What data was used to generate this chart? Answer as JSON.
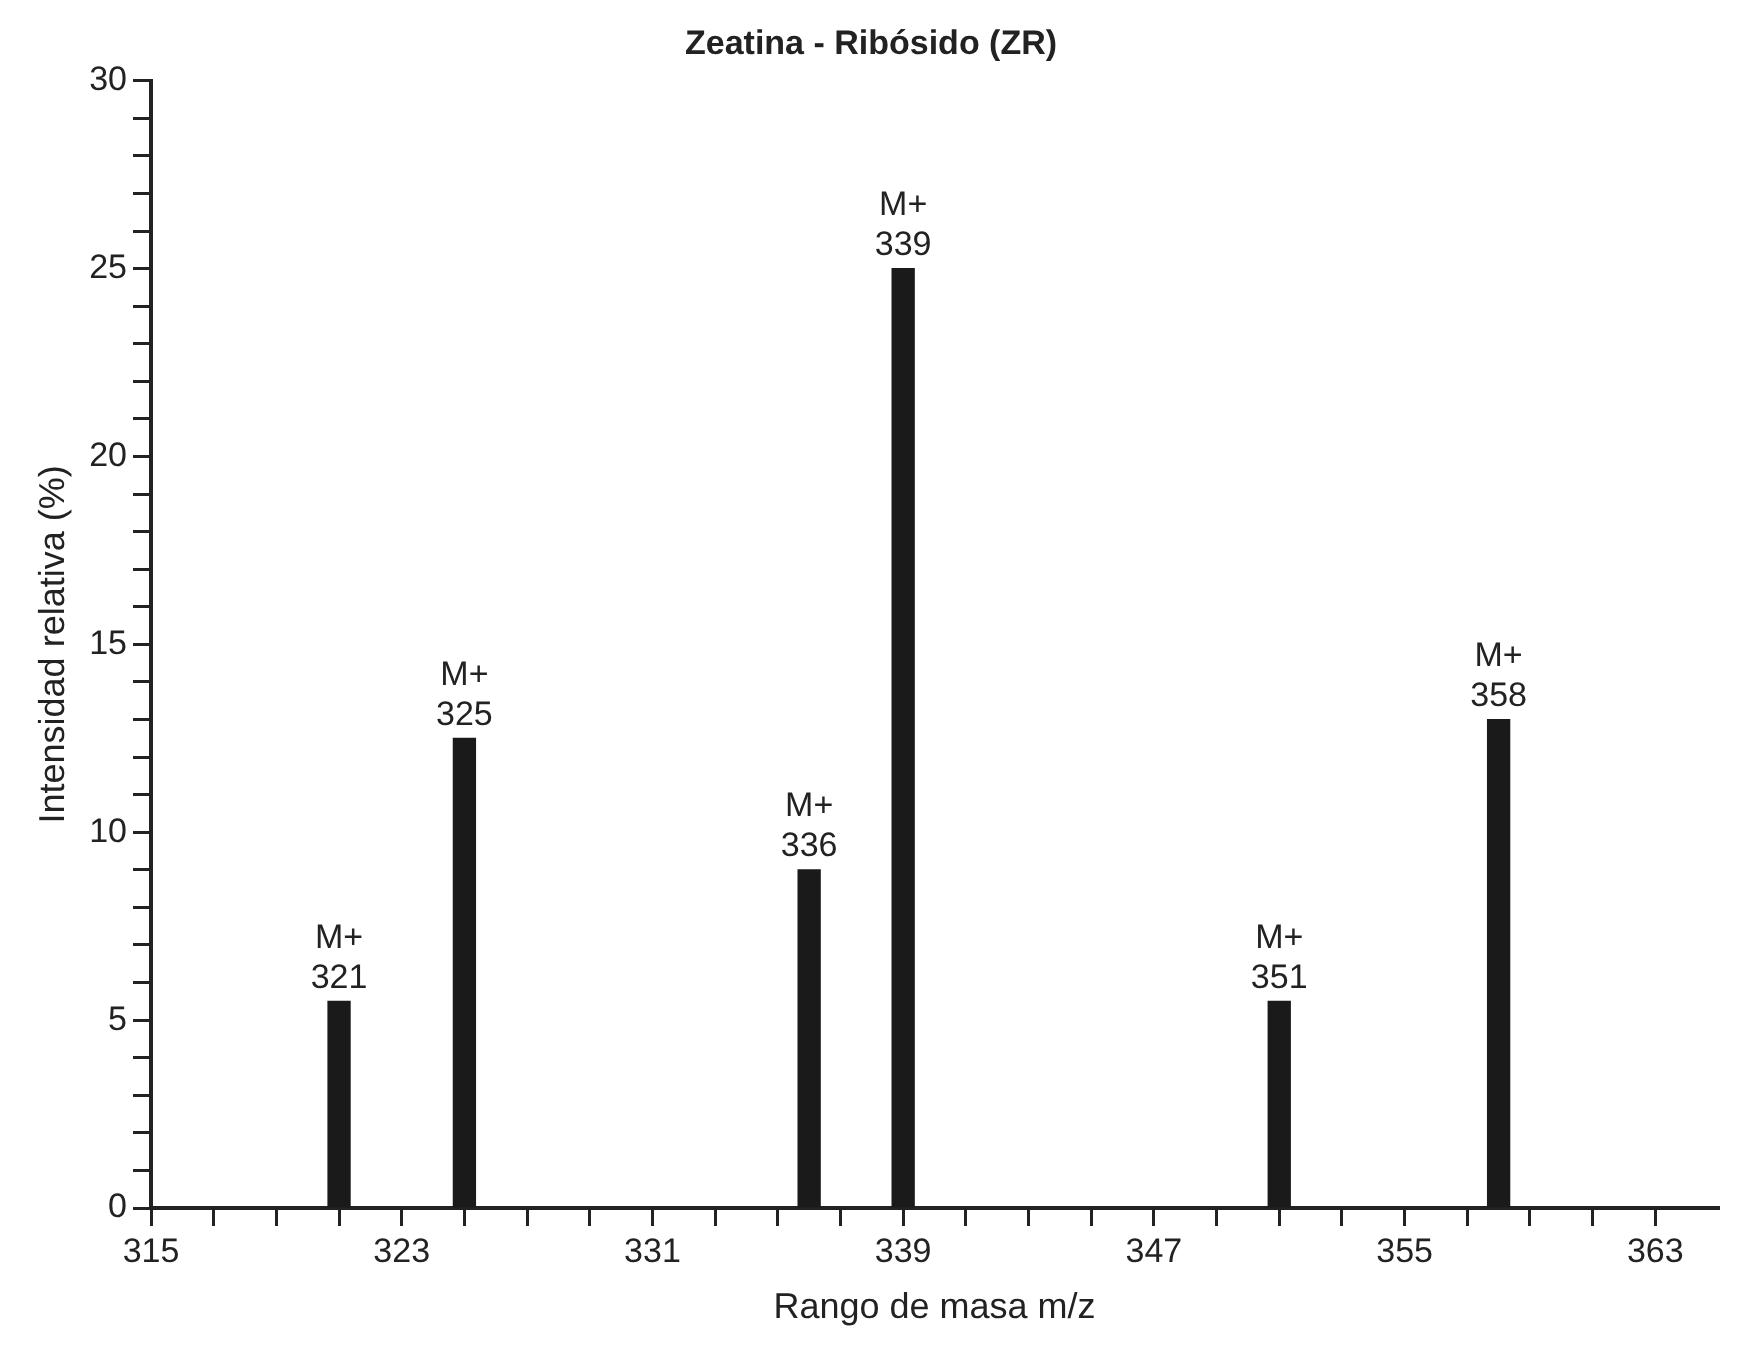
{
  "chart_data": {
    "type": "bar",
    "title": "Zeatina - Ribósido (ZR)",
    "xlabel": "Rango de masa m/z",
    "ylabel": "Intensidad relativa (%)",
    "x": [
      321,
      325,
      336,
      339,
      351,
      358
    ],
    "values": [
      5.5,
      12.5,
      9,
      25,
      5.5,
      13
    ],
    "value_labels": [
      "M+\n321",
      "M+\n325",
      "M+\n336",
      "M+\n339",
      "M+\n351",
      "M+\n358"
    ],
    "color": "#1a1a1a",
    "xlim": [
      315,
      365
    ],
    "xticks": [
      315,
      {
        "value": 317,
        "label": null
      },
      {
        "value": 319,
        "label": null
      },
      {
        "value": 321,
        "label": null
      },
      323,
      {
        "value": 325,
        "label": null
      },
      {
        "value": 327,
        "label": null
      },
      {
        "value": 329,
        "label": null
      },
      331,
      {
        "value": 333,
        "label": null
      },
      {
        "value": 335,
        "label": null
      },
      {
        "value": 337,
        "label": null
      },
      339,
      {
        "value": 341,
        "label": null
      },
      {
        "value": 343,
        "label": null
      },
      {
        "value": 345,
        "label": null
      },
      347,
      {
        "value": 349,
        "label": null
      },
      {
        "value": 351,
        "label": null
      },
      {
        "value": 353,
        "label": null
      },
      355,
      {
        "value": 357,
        "label": null
      },
      {
        "value": 359,
        "label": null
      },
      {
        "value": 361,
        "label": null
      },
      363
    ],
    "ylim": [
      0,
      30
    ],
    "yticks": [
      0,
      {
        "value": 1,
        "label": null
      },
      {
        "value": 2,
        "label": null
      },
      {
        "value": 3,
        "label": null
      },
      {
        "value": 4,
        "label": null
      },
      5,
      {
        "value": 6,
        "label": null
      },
      {
        "value": 7,
        "label": null
      },
      {
        "value": 8,
        "label": null
      },
      {
        "value": 9,
        "label": null
      },
      10,
      {
        "value": 11,
        "label": null
      },
      {
        "value": 12,
        "label": null
      },
      {
        "value": 13,
        "label": null
      },
      {
        "value": 14,
        "label": null
      },
      15,
      {
        "value": 16,
        "label": null
      },
      {
        "value": 17,
        "label": null
      },
      {
        "value": 18,
        "label": null
      },
      {
        "value": 19,
        "label": null
      },
      20,
      {
        "value": 21,
        "label": null
      },
      {
        "value": 22,
        "label": null
      },
      {
        "value": 23,
        "label": null
      },
      {
        "value": 24,
        "label": null
      },
      25,
      {
        "value": 26,
        "label": null
      },
      {
        "value": 27,
        "label": null
      },
      {
        "value": 28,
        "label": null
      },
      {
        "value": 29,
        "label": null
      },
      30
    ],
    "grid": false,
    "legend": false
  }
}
